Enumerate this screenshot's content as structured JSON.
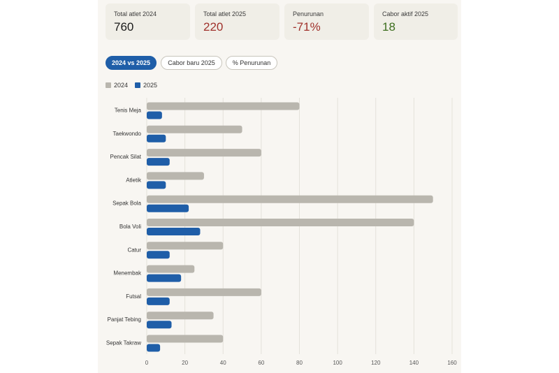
{
  "stats": [
    {
      "label": "Total atlet 2024",
      "value": "760",
      "color": "#1a1a1a"
    },
    {
      "label": "Total atlet 2025",
      "value": "220",
      "color": "#a0322c"
    },
    {
      "label": "Penurunan",
      "value": "-71%",
      "color": "#a0322c"
    },
    {
      "label": "Cabor aktif 2025",
      "value": "18",
      "color": "#3c6e1e"
    }
  ],
  "tabs": [
    {
      "label": "2024 vs 2025",
      "active": true
    },
    {
      "label": "Cabor baru 2025",
      "active": false
    },
    {
      "label": "% Penurunan",
      "active": false
    }
  ],
  "colors": {
    "series_2024": "#b9b6ae",
    "series_2025": "#1f5ea8",
    "grid": "#e4e1da",
    "tick_text": "#555555"
  },
  "chart_data": {
    "type": "bar",
    "orientation": "horizontal",
    "categories": [
      "Tenis Meja",
      "Taekwondo",
      "Pencak Silat",
      "Atletik",
      "Sepak Bola",
      "Bola Voli",
      "Catur",
      "Menembak",
      "Futsal",
      "Panjat Tebing",
      "Sepak Takraw"
    ],
    "series": [
      {
        "name": "2024",
        "values": [
          80,
          50,
          60,
          30,
          150,
          140,
          40,
          25,
          60,
          35,
          40
        ]
      },
      {
        "name": "2025",
        "values": [
          8,
          10,
          12,
          10,
          22,
          28,
          12,
          18,
          12,
          13,
          7
        ]
      }
    ],
    "xticks": [
      0,
      20,
      40,
      60,
      80,
      100,
      120,
      140,
      160
    ],
    "xlim": [
      0,
      160
    ],
    "grid": true,
    "legend": "top-left"
  }
}
